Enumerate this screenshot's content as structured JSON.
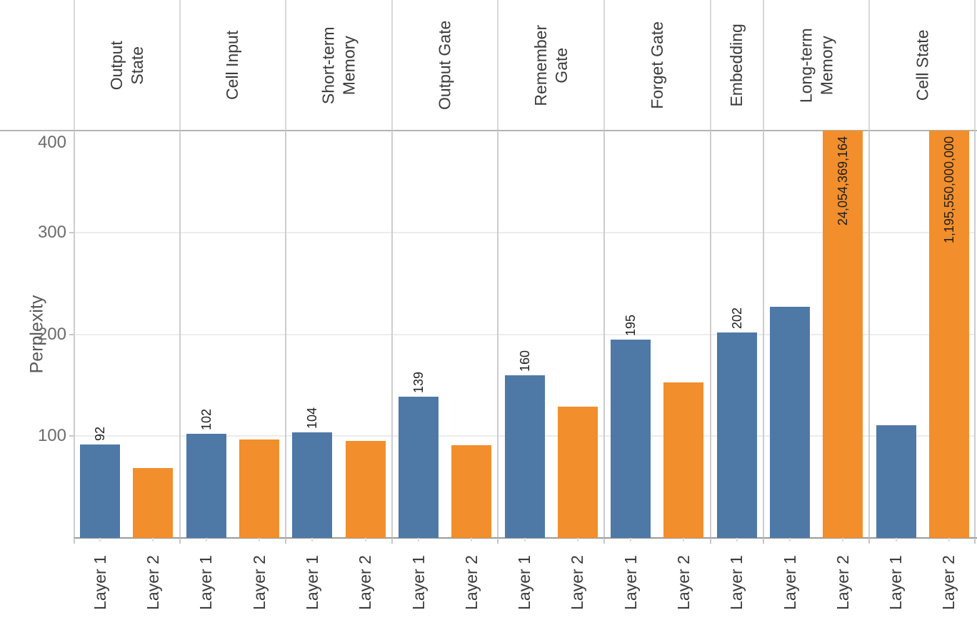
{
  "chart_data": {
    "type": "bar",
    "title": "",
    "ylabel": "Perplexity",
    "ylim": [
      0,
      400
    ],
    "yticks": [
      100,
      200,
      300,
      400
    ],
    "grid": "horizontal",
    "legend": "none",
    "series_colors": {
      "Layer 1": "#4e79a7",
      "Layer 2": "#f28e2b"
    },
    "groups": [
      {
        "label": "Output State",
        "label_lines": [
          "Output",
          "State"
        ],
        "bars": [
          {
            "layer": "Layer 1",
            "value": 92,
            "value_label": "92",
            "label_position": "above"
          },
          {
            "layer": "Layer 2",
            "value": 69,
            "value_label": null,
            "estimated": true
          }
        ]
      },
      {
        "label": "Cell Input",
        "label_lines": [
          "Cell Input"
        ],
        "bars": [
          {
            "layer": "Layer 1",
            "value": 102,
            "value_label": "102",
            "label_position": "above"
          },
          {
            "layer": "Layer 2",
            "value": 97,
            "value_label": null,
            "estimated": true
          }
        ]
      },
      {
        "label": "Short-term Memory",
        "label_lines": [
          "Short-term",
          "Memory"
        ],
        "bars": [
          {
            "layer": "Layer 1",
            "value": 104,
            "value_label": "104",
            "label_position": "above"
          },
          {
            "layer": "Layer 2",
            "value": 95,
            "value_label": null,
            "estimated": true
          }
        ]
      },
      {
        "label": "Output Gate",
        "label_lines": [
          "Output Gate"
        ],
        "bars": [
          {
            "layer": "Layer 1",
            "value": 139,
            "value_label": "139",
            "label_position": "above"
          },
          {
            "layer": "Layer 2",
            "value": 91,
            "value_label": null,
            "estimated": true
          }
        ]
      },
      {
        "label": "Remember Gate",
        "label_lines": [
          "Remember",
          "Gate"
        ],
        "bars": [
          {
            "layer": "Layer 1",
            "value": 160,
            "value_label": "160",
            "label_position": "above"
          },
          {
            "layer": "Layer 2",
            "value": 129,
            "value_label": null,
            "estimated": true
          }
        ]
      },
      {
        "label": "Forget Gate",
        "label_lines": [
          "Forget Gate"
        ],
        "bars": [
          {
            "layer": "Layer 1",
            "value": 195,
            "value_label": "195",
            "label_position": "above"
          },
          {
            "layer": "Layer 2",
            "value": 153,
            "value_label": null,
            "estimated": true
          }
        ]
      },
      {
        "label": "Embedding",
        "label_lines": [
          "Embedding"
        ],
        "bars": [
          {
            "layer": "Layer 1",
            "value": 202,
            "value_label": "202",
            "label_position": "above"
          }
        ]
      },
      {
        "label": "Long-term Memory",
        "label_lines": [
          "Long-term",
          "Memory"
        ],
        "bars": [
          {
            "layer": "Layer 1",
            "value": 227,
            "value_label": null,
            "estimated": true
          },
          {
            "layer": "Layer 2",
            "value": 24054369164,
            "value_label": "24,054,369,164",
            "label_position": "inside-top",
            "clipped": true
          }
        ]
      },
      {
        "label": "Cell State",
        "label_lines": [
          "Cell State"
        ],
        "bars": [
          {
            "layer": "Layer 1",
            "value": 111,
            "value_label": null,
            "estimated": true
          },
          {
            "layer": "Layer 2",
            "value": 1195550000000,
            "value_label": "1,195,550,000,000",
            "label_position": "inside-top",
            "clipped": true
          }
        ]
      }
    ]
  }
}
